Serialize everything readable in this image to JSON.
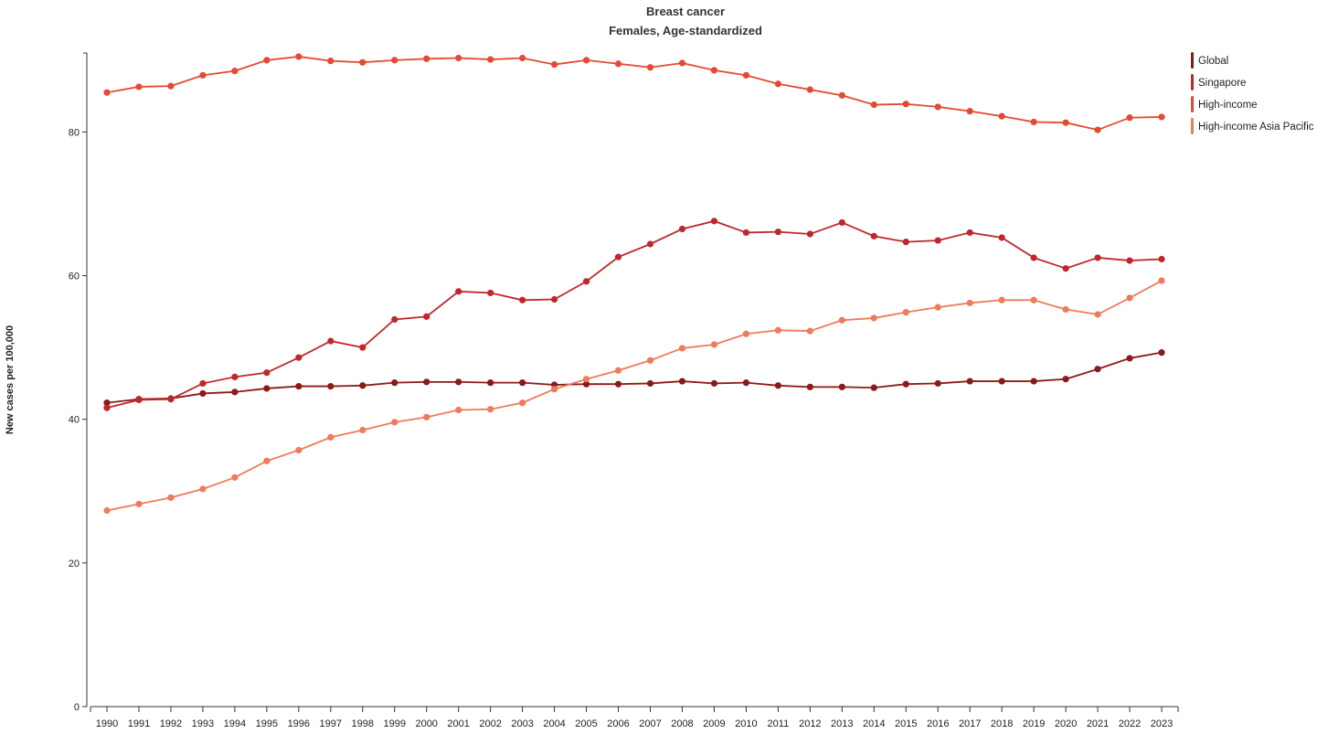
{
  "chart_data": {
    "type": "line",
    "title": "Breast cancer",
    "subtitle": "Females, Age-standardized",
    "xlabel": "",
    "ylabel": "New cases per 100,000",
    "ylim": [
      0,
      91
    ],
    "yticks": [
      0,
      20,
      40,
      60,
      80
    ],
    "x": [
      1990,
      1991,
      1992,
      1993,
      1994,
      1995,
      1996,
      1997,
      1998,
      1999,
      2000,
      2001,
      2002,
      2003,
      2004,
      2005,
      2006,
      2007,
      2008,
      2009,
      2010,
      2011,
      2012,
      2013,
      2014,
      2015,
      2016,
      2017,
      2018,
      2019,
      2020,
      2021,
      2022,
      2023
    ],
    "grid": false,
    "legend_position": "top-right",
    "series": [
      {
        "name": "Global",
        "color": "#8b1a1a",
        "values": [
          42.3,
          42.8,
          42.9,
          43.6,
          43.8,
          44.3,
          44.6,
          44.6,
          44.7,
          45.1,
          45.2,
          45.2,
          45.1,
          45.1,
          44.8,
          44.9,
          44.9,
          45.0,
          45.3,
          45.0,
          45.1,
          44.7,
          44.5,
          44.5,
          44.4,
          44.9,
          45.0,
          45.3,
          45.3,
          45.3,
          45.6,
          47.0,
          48.5,
          49.3
        ]
      },
      {
        "name": "Singapore",
        "color": "#c0272d",
        "values": [
          41.6,
          42.7,
          42.8,
          45.0,
          45.9,
          46.5,
          48.6,
          50.9,
          50.0,
          53.9,
          54.3,
          57.8,
          57.6,
          56.6,
          56.7,
          59.2,
          62.6,
          64.4,
          66.5,
          67.6,
          66.0,
          66.1,
          65.8,
          67.4,
          65.5,
          64.7,
          64.9,
          66.0,
          65.3,
          62.5,
          61.0,
          62.5,
          62.1,
          62.3
        ]
      },
      {
        "name": "High-income",
        "color": "#e34a33",
        "values": [
          85.5,
          86.3,
          86.4,
          87.9,
          88.5,
          90.0,
          90.5,
          89.9,
          89.7,
          90.0,
          90.2,
          90.3,
          90.1,
          90.3,
          89.4,
          90.0,
          89.5,
          89.0,
          89.6,
          88.6,
          87.9,
          86.7,
          85.9,
          85.1,
          83.8,
          83.9,
          83.5,
          82.9,
          82.2,
          81.4,
          81.3,
          80.3,
          82.0,
          82.1
        ]
      },
      {
        "name": "High-income Asia Pacific",
        "color": "#ee7b5a",
        "values": [
          27.3,
          28.2,
          29.1,
          30.3,
          31.9,
          34.2,
          35.7,
          37.5,
          38.5,
          39.6,
          40.3,
          41.3,
          41.4,
          42.3,
          44.2,
          45.6,
          46.8,
          48.2,
          49.9,
          50.4,
          51.9,
          52.4,
          52.3,
          53.8,
          54.1,
          54.9,
          55.6,
          56.2,
          56.6,
          56.6,
          55.3,
          54.6,
          56.9,
          59.3
        ]
      }
    ]
  }
}
